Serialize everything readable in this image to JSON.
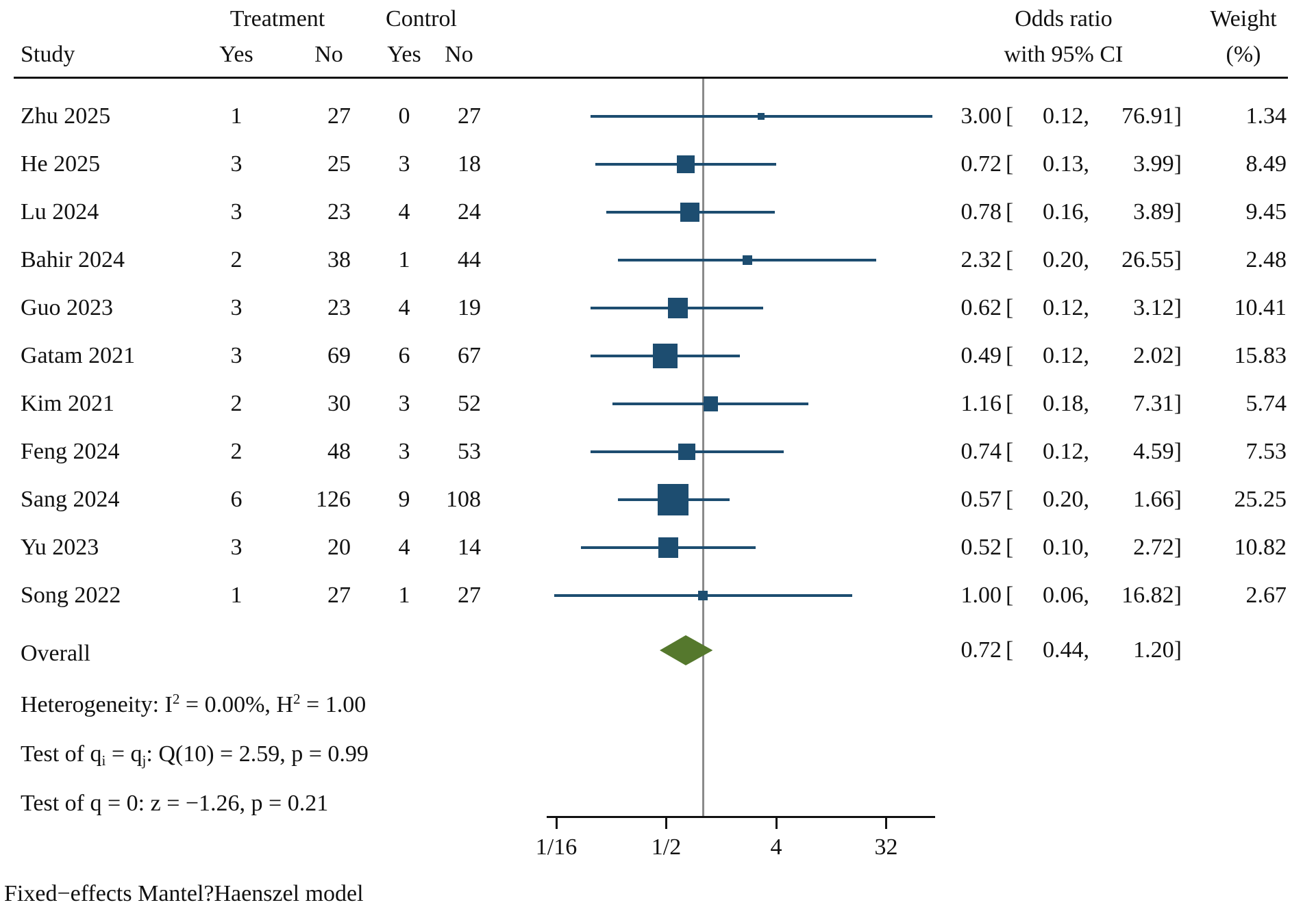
{
  "header": {
    "study": "Study",
    "treatment_group": "Treatment",
    "control_group": "Control",
    "yes": "Yes",
    "no": "No",
    "or_line1": "Odds ratio",
    "or_line2": "with 95% CI",
    "weight_line1": "Weight",
    "weight_line2": "(%)"
  },
  "chart_data": {
    "type": "forest",
    "x_scale": "log2",
    "x_tick_labels": [
      "1/16",
      "1/2",
      "4",
      "32"
    ],
    "x_tick_values": [
      0.0625,
      0.5,
      4,
      32
    ],
    "null_line_value": 1,
    "legend_position": "none",
    "grid": false,
    "studies": [
      {
        "study": "Zhu 2025",
        "t_yes": "1",
        "t_no": "27",
        "c_yes": "0",
        "c_no": "27",
        "or": "3.00",
        "lo": "0.12",
        "hi": "76.91",
        "weight": "1.34"
      },
      {
        "study": "He 2025",
        "t_yes": "3",
        "t_no": "25",
        "c_yes": "3",
        "c_no": "18",
        "or": "0.72",
        "lo": "0.13",
        "hi": "3.99",
        "weight": "8.49"
      },
      {
        "study": "Lu 2024",
        "t_yes": "3",
        "t_no": "23",
        "c_yes": "4",
        "c_no": "24",
        "or": "0.78",
        "lo": "0.16",
        "hi": "3.89",
        "weight": "9.45"
      },
      {
        "study": "Bahir 2024",
        "t_yes": "2",
        "t_no": "38",
        "c_yes": "1",
        "c_no": "44",
        "or": "2.32",
        "lo": "0.20",
        "hi": "26.55",
        "weight": "2.48"
      },
      {
        "study": "Guo 2023",
        "t_yes": "3",
        "t_no": "23",
        "c_yes": "4",
        "c_no": "19",
        "or": "0.62",
        "lo": "0.12",
        "hi": "3.12",
        "weight": "10.41"
      },
      {
        "study": "Gatam 2021",
        "t_yes": "3",
        "t_no": "69",
        "c_yes": "6",
        "c_no": "67",
        "or": "0.49",
        "lo": "0.12",
        "hi": "2.02",
        "weight": "15.83"
      },
      {
        "study": "Kim 2021",
        "t_yes": "2",
        "t_no": "30",
        "c_yes": "3",
        "c_no": "52",
        "or": "1.16",
        "lo": "0.18",
        "hi": "7.31",
        "weight": "5.74"
      },
      {
        "study": "Feng 2024",
        "t_yes": "2",
        "t_no": "48",
        "c_yes": "3",
        "c_no": "53",
        "or": "0.74",
        "lo": "0.12",
        "hi": "4.59",
        "weight": "7.53"
      },
      {
        "study": "Sang 2024",
        "t_yes": "6",
        "t_no": "126",
        "c_yes": "9",
        "c_no": "108",
        "or": "0.57",
        "lo": "0.20",
        "hi": "1.66",
        "weight": "25.25"
      },
      {
        "study": "Yu 2023",
        "t_yes": "3",
        "t_no": "20",
        "c_yes": "4",
        "c_no": "14",
        "or": "0.52",
        "lo": "0.10",
        "hi": "2.72",
        "weight": "10.82"
      },
      {
        "study": "Song 2022",
        "t_yes": "1",
        "t_no": "27",
        "c_yes": "1",
        "c_no": "27",
        "or": "1.00",
        "lo": "0.06",
        "hi": "16.82",
        "weight": "2.67"
      }
    ],
    "overall": {
      "label": "Overall",
      "or": "0.72",
      "lo": "0.44",
      "hi": "1.20"
    }
  },
  "stats": {
    "heterogeneity": [
      {
        "t": "Heterogeneity: I"
      },
      {
        "t": "2",
        "s": "sup"
      },
      {
        "t": " = 0.00%, H"
      },
      {
        "t": "2",
        "s": "sup"
      },
      {
        "t": " = 1.00"
      }
    ],
    "test_q_equal": [
      {
        "t": "Test of q"
      },
      {
        "t": "i",
        "s": "sub"
      },
      {
        "t": " = q"
      },
      {
        "t": "j",
        "s": "sub"
      },
      {
        "t": ": Q(10) = 2.59, p = 0.99"
      }
    ],
    "test_q_zero": [
      {
        "t": "Test of q = 0: z = −1.26, p = 0.21"
      }
    ]
  },
  "footer": "Fixed−effects Mantel?Haenszel model",
  "colors": {
    "marker": "#1d4d70",
    "ci_line": "#1d4d70",
    "diamond": "#55782d",
    "reference_line": "#8a8a8a",
    "axis": "#111111"
  }
}
